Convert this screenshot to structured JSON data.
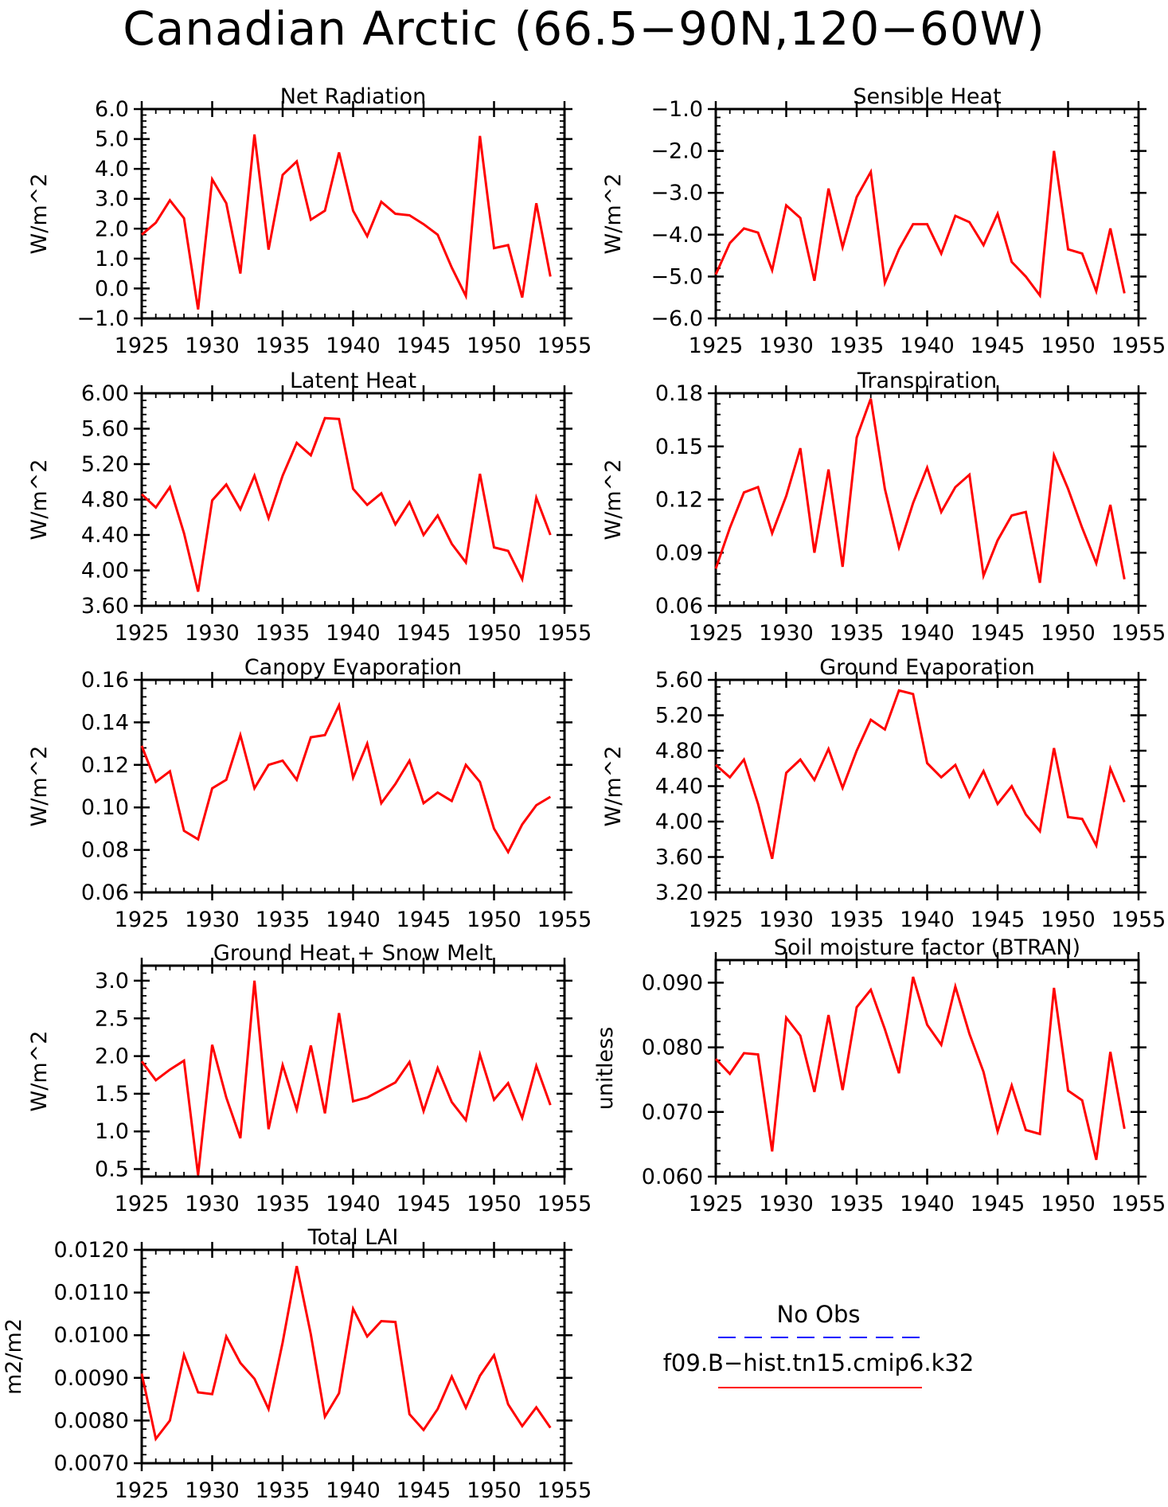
{
  "title": "Canadian Arctic (66.5−90N,120−60W)",
  "line_color": "#ff0000",
  "obs_color": "#0000ff",
  "legend": {
    "obs_label": "No Obs",
    "model_label": "f09.B−hist.tn15.cmip6.k32"
  },
  "chart_data": [
    {
      "type": "line",
      "title": "Net Radiation",
      "ylabel": "W/m^2",
      "xlim": [
        1925,
        1955
      ],
      "ylim": [
        -1.0,
        6.0
      ],
      "xticks": [
        "1925",
        "1930",
        "1935",
        "1940",
        "1945",
        "1950",
        "1955"
      ],
      "yticks": [
        "−1.0",
        "0.0",
        "1.0",
        "2.0",
        "3.0",
        "4.0",
        "5.0",
        "6.0"
      ],
      "ytick_values": [
        -1,
        0,
        1,
        2,
        3,
        4,
        5,
        6
      ],
      "x": [
        1925,
        1926,
        1927,
        1928,
        1929,
        1930,
        1931,
        1932,
        1933,
        1934,
        1935,
        1936,
        1937,
        1938,
        1939,
        1940,
        1941,
        1942,
        1943,
        1944,
        1945,
        1946,
        1947,
        1948,
        1949,
        1950,
        1951,
        1952,
        1953,
        1954
      ],
      "values": [
        1.8,
        2.2,
        2.95,
        2.35,
        -0.7,
        3.65,
        2.85,
        0.5,
        5.15,
        1.3,
        3.8,
        4.25,
        2.3,
        2.6,
        4.55,
        2.6,
        1.75,
        2.9,
        2.5,
        2.45,
        2.15,
        1.8,
        0.7,
        -0.25,
        5.1,
        1.35,
        1.45,
        -0.3,
        2.85,
        0.4
      ]
    },
    {
      "type": "line",
      "title": "Sensible Heat",
      "ylabel": "W/m^2",
      "xlim": [
        1925,
        1955
      ],
      "ylim": [
        -6.0,
        -1.0
      ],
      "xticks": [
        "1925",
        "1930",
        "1935",
        "1940",
        "1945",
        "1950",
        "1955"
      ],
      "yticks": [
        "−6.0",
        "−5.0",
        "−4.0",
        "−3.0",
        "−2.0",
        "−1.0"
      ],
      "ytick_values": [
        -6,
        -5,
        -4,
        -3,
        -2,
        -1
      ],
      "x": [
        1925,
        1926,
        1927,
        1928,
        1929,
        1930,
        1931,
        1932,
        1933,
        1934,
        1935,
        1936,
        1937,
        1938,
        1939,
        1940,
        1941,
        1942,
        1943,
        1944,
        1945,
        1946,
        1947,
        1948,
        1949,
        1950,
        1951,
        1952,
        1953,
        1954
      ],
      "values": [
        -4.95,
        -4.2,
        -3.85,
        -3.95,
        -4.85,
        -3.3,
        -3.6,
        -5.1,
        -2.9,
        -4.3,
        -3.1,
        -2.5,
        -5.15,
        -4.35,
        -3.75,
        -3.75,
        -4.45,
        -3.55,
        -3.7,
        -4.25,
        -3.5,
        -4.65,
        -5.0,
        -5.45,
        -2.0,
        -4.35,
        -4.45,
        -5.35,
        -3.85,
        -5.4
      ]
    },
    {
      "type": "line",
      "title": "Latent Heat",
      "ylabel": "W/m^2",
      "xlim": [
        1925,
        1955
      ],
      "ylim": [
        3.6,
        6.0
      ],
      "xticks": [
        "1925",
        "1930",
        "1935",
        "1940",
        "1945",
        "1950",
        "1955"
      ],
      "yticks": [
        "3.60",
        "4.00",
        "4.40",
        "4.80",
        "5.20",
        "5.60",
        "6.00"
      ],
      "ytick_values": [
        3.6,
        4.0,
        4.4,
        4.8,
        5.2,
        5.6,
        6.0
      ],
      "x": [
        1925,
        1926,
        1927,
        1928,
        1929,
        1930,
        1931,
        1932,
        1933,
        1934,
        1935,
        1936,
        1937,
        1938,
        1939,
        1940,
        1941,
        1942,
        1943,
        1944,
        1945,
        1946,
        1947,
        1948,
        1949,
        1950,
        1951,
        1952,
        1953,
        1954
      ],
      "values": [
        4.86,
        4.71,
        4.94,
        4.42,
        3.76,
        4.79,
        4.97,
        4.69,
        5.07,
        4.59,
        5.07,
        5.44,
        5.3,
        5.72,
        5.71,
        4.92,
        4.74,
        4.87,
        4.52,
        4.77,
        4.4,
        4.62,
        4.3,
        4.09,
        5.09,
        4.26,
        4.22,
        3.9,
        4.82,
        4.4
      ]
    },
    {
      "type": "line",
      "title": "Transpiration",
      "ylabel": "W/m^2",
      "xlim": [
        1925,
        1955
      ],
      "ylim": [
        0.06,
        0.18
      ],
      "xticks": [
        "1925",
        "1930",
        "1935",
        "1940",
        "1945",
        "1950",
        "1955"
      ],
      "yticks": [
        "0.06",
        "0.09",
        "0.12",
        "0.15",
        "0.18"
      ],
      "ytick_values": [
        0.06,
        0.09,
        0.12,
        0.15,
        0.18
      ],
      "x": [
        1925,
        1926,
        1927,
        1928,
        1929,
        1930,
        1931,
        1932,
        1933,
        1934,
        1935,
        1936,
        1937,
        1938,
        1939,
        1940,
        1941,
        1942,
        1943,
        1944,
        1945,
        1946,
        1947,
        1948,
        1949,
        1950,
        1951,
        1952,
        1953,
        1954
      ],
      "values": [
        0.081,
        0.104,
        0.124,
        0.127,
        0.101,
        0.122,
        0.149,
        0.09,
        0.137,
        0.082,
        0.155,
        0.177,
        0.126,
        0.093,
        0.118,
        0.138,
        0.113,
        0.127,
        0.134,
        0.077,
        0.097,
        0.111,
        0.113,
        0.073,
        0.145,
        0.126,
        0.104,
        0.084,
        0.117,
        0.075
      ]
    },
    {
      "type": "line",
      "title": "Canopy Evaporation",
      "ylabel": "W/m^2",
      "xlim": [
        1925,
        1955
      ],
      "ylim": [
        0.06,
        0.16
      ],
      "xticks": [
        "1925",
        "1930",
        "1935",
        "1940",
        "1945",
        "1950",
        "1955"
      ],
      "yticks": [
        "0.06",
        "0.08",
        "0.10",
        "0.12",
        "0.14",
        "0.16"
      ],
      "ytick_values": [
        0.06,
        0.08,
        0.1,
        0.12,
        0.14,
        0.16
      ],
      "x": [
        1925,
        1926,
        1927,
        1928,
        1929,
        1930,
        1931,
        1932,
        1933,
        1934,
        1935,
        1936,
        1937,
        1938,
        1939,
        1940,
        1941,
        1942,
        1943,
        1944,
        1945,
        1946,
        1947,
        1948,
        1949,
        1950,
        1951,
        1952,
        1953,
        1954
      ],
      "values": [
        0.129,
        0.112,
        0.117,
        0.089,
        0.085,
        0.109,
        0.113,
        0.134,
        0.109,
        0.12,
        0.122,
        0.113,
        0.133,
        0.134,
        0.148,
        0.114,
        0.13,
        0.102,
        0.111,
        0.122,
        0.102,
        0.107,
        0.103,
        0.12,
        0.112,
        0.09,
        0.079,
        0.092,
        0.101,
        0.105
      ]
    },
    {
      "type": "line",
      "title": "Ground Evaporation",
      "ylabel": "W/m^2",
      "xlim": [
        1925,
        1955
      ],
      "ylim": [
        3.2,
        5.6
      ],
      "xticks": [
        "1925",
        "1930",
        "1935",
        "1940",
        "1945",
        "1950",
        "1955"
      ],
      "yticks": [
        "3.20",
        "3.60",
        "4.00",
        "4.40",
        "4.80",
        "5.20",
        "5.60"
      ],
      "ytick_values": [
        3.2,
        3.6,
        4.0,
        4.4,
        4.8,
        5.2,
        5.6
      ],
      "x": [
        1925,
        1926,
        1927,
        1928,
        1929,
        1930,
        1931,
        1932,
        1933,
        1934,
        1935,
        1936,
        1937,
        1938,
        1939,
        1940,
        1941,
        1942,
        1943,
        1944,
        1945,
        1946,
        1947,
        1948,
        1949,
        1950,
        1951,
        1952,
        1953,
        1954
      ],
      "values": [
        4.64,
        4.5,
        4.7,
        4.2,
        3.58,
        4.55,
        4.7,
        4.47,
        4.82,
        4.38,
        4.8,
        5.15,
        5.04,
        5.48,
        5.44,
        4.66,
        4.5,
        4.64,
        4.28,
        4.57,
        4.2,
        4.4,
        4.08,
        3.89,
        4.83,
        4.05,
        4.03,
        3.73,
        4.6,
        4.22
      ]
    },
    {
      "type": "line",
      "title": "Ground Heat + Snow Melt",
      "ylabel": "W/m^2",
      "xlim": [
        1925,
        1955
      ],
      "ylim": [
        0.4,
        3.2
      ],
      "xticks": [
        "1925",
        "1930",
        "1935",
        "1940",
        "1945",
        "1950",
        "1955"
      ],
      "yticks": [
        "0.5",
        "1.0",
        "1.5",
        "2.0",
        "2.5",
        "3.0"
      ],
      "ytick_values": [
        0.5,
        1.0,
        1.5,
        2.0,
        2.5,
        3.0
      ],
      "x": [
        1925,
        1926,
        1927,
        1928,
        1929,
        1930,
        1931,
        1932,
        1933,
        1934,
        1935,
        1936,
        1937,
        1938,
        1939,
        1940,
        1941,
        1942,
        1943,
        1944,
        1945,
        1946,
        1947,
        1948,
        1949,
        1950,
        1951,
        1952,
        1953,
        1954
      ],
      "values": [
        1.93,
        1.68,
        1.82,
        1.94,
        0.42,
        2.15,
        1.45,
        0.91,
        3.0,
        1.03,
        1.88,
        1.29,
        2.14,
        1.24,
        2.57,
        1.4,
        1.45,
        1.55,
        1.65,
        1.92,
        1.27,
        1.84,
        1.39,
        1.15,
        2.02,
        1.42,
        1.64,
        1.18,
        1.87,
        1.35
      ]
    },
    {
      "type": "line",
      "title": "Soil moisture factor (BTRAN)",
      "ylabel": "unitless",
      "xlim": [
        1925,
        1955
      ],
      "ylim": [
        0.06,
        0.0935
      ],
      "xticks": [
        "1925",
        "1930",
        "1935",
        "1940",
        "1945",
        "1950",
        "1955"
      ],
      "yticks": [
        "0.060",
        "0.070",
        "0.080",
        "0.090"
      ],
      "ytick_values": [
        0.06,
        0.07,
        0.08,
        0.09
      ],
      "x": [
        1925,
        1926,
        1927,
        1928,
        1929,
        1930,
        1931,
        1932,
        1933,
        1934,
        1935,
        1936,
        1937,
        1938,
        1939,
        1940,
        1941,
        1942,
        1943,
        1944,
        1945,
        1946,
        1947,
        1948,
        1949,
        1950,
        1951,
        1952,
        1953,
        1954
      ],
      "values": [
        0.0782,
        0.0759,
        0.0791,
        0.0789,
        0.0639,
        0.0846,
        0.0818,
        0.0731,
        0.085,
        0.0734,
        0.0862,
        0.0889,
        0.0828,
        0.076,
        0.0909,
        0.0835,
        0.0804,
        0.0894,
        0.0821,
        0.0762,
        0.067,
        0.0741,
        0.0672,
        0.0666,
        0.0892,
        0.0733,
        0.0718,
        0.0626,
        0.0793,
        0.0674
      ]
    },
    {
      "type": "line",
      "title": "Total LAI",
      "ylabel": "m2/m2",
      "xlim": [
        1925,
        1955
      ],
      "ylim": [
        0.007,
        0.012
      ],
      "xticks": [
        "1925",
        "1930",
        "1935",
        "1940",
        "1945",
        "1950",
        "1955"
      ],
      "yticks": [
        "0.0070",
        "0.0080",
        "0.0090",
        "0.0100",
        "0.0110",
        "0.0120"
      ],
      "ytick_values": [
        0.007,
        0.008,
        0.009,
        0.01,
        0.011,
        0.012
      ],
      "x": [
        1925,
        1926,
        1927,
        1928,
        1929,
        1930,
        1931,
        1932,
        1933,
        1934,
        1935,
        1936,
        1937,
        1938,
        1939,
        1940,
        1941,
        1942,
        1943,
        1944,
        1945,
        1946,
        1947,
        1948,
        1949,
        1950,
        1951,
        1952,
        1953,
        1954
      ],
      "values": [
        0.0091,
        0.00757,
        0.008,
        0.00954,
        0.00866,
        0.00862,
        0.00997,
        0.00935,
        0.00898,
        0.00827,
        0.00983,
        0.01162,
        0.01002,
        0.00809,
        0.00864,
        0.01062,
        0.00997,
        0.01033,
        0.01031,
        0.00815,
        0.00778,
        0.00827,
        0.00903,
        0.0083,
        0.00905,
        0.00953,
        0.00838,
        0.00787,
        0.00831,
        0.00783
      ]
    }
  ]
}
